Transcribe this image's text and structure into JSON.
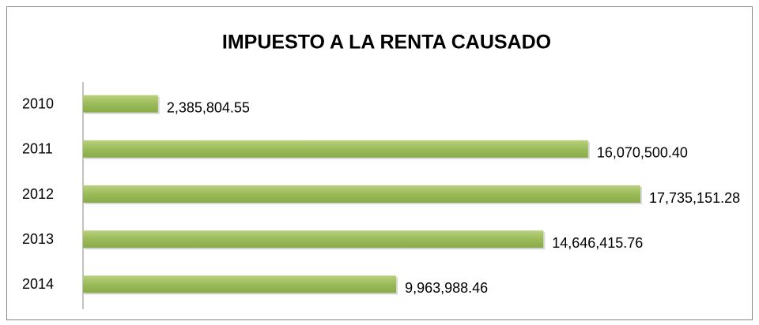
{
  "chart_data": {
    "type": "bar",
    "orientation": "horizontal",
    "title": "IMPUESTO A LA RENTA CAUSADO",
    "categories": [
      "2010",
      "2011",
      "2012",
      "2013",
      "2014"
    ],
    "values": [
      2385804.55,
      16070500.4,
      17735151.28,
      14646415.76,
      9963988.46
    ],
    "value_labels": [
      "2,385,804.55",
      "16,070,500.40",
      "17,735,151.28",
      "14,646,415.76",
      "9,963,988.46"
    ],
    "color": "#9bbb59"
  }
}
